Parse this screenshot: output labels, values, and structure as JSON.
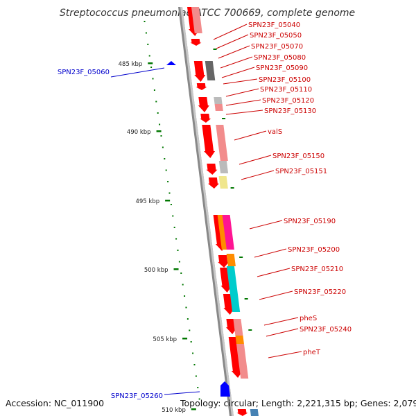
{
  "title": "Streptococcus pneumoniae ATCC 700669, complete genome",
  "footer": {
    "accession": "Accession: NC_011900",
    "topology": "Topology: circular; Length: 2,221,315 bp; Genes: 2,079"
  },
  "colors": {
    "forward_label": "#cc0000",
    "reverse_label": "#0000cc",
    "cds_forward": "#ff0000",
    "cds_reverse": "#0000ff",
    "backbone": "#999999",
    "tick": "#007700"
  },
  "kbp_ticks": [
    "485 kbp",
    "490 kbp",
    "495 kbp",
    "500 kbp",
    "505 kbp",
    "510 kbp"
  ],
  "forward_genes": [
    {
      "label": "SPN23F_05040"
    },
    {
      "label": "SPN23F_05050"
    },
    {
      "label": "SPN23F_05070"
    },
    {
      "label": "SPN23F_05080"
    },
    {
      "label": "SPN23F_05090"
    },
    {
      "label": "SPN23F_05100"
    },
    {
      "label": "SPN23F_05110"
    },
    {
      "label": "SPN23F_05120"
    },
    {
      "label": "SPN23F_05130"
    },
    {
      "label": "valS"
    },
    {
      "label": "SPN23F_05150"
    },
    {
      "label": "SPN23F_05151"
    },
    {
      "label": "SPN23F_05190"
    },
    {
      "label": "SPN23F_05200"
    },
    {
      "label": "SPN23F_05210"
    },
    {
      "label": "SPN23F_05220"
    },
    {
      "label": "pheS"
    },
    {
      "label": "SPN23F_05240"
    },
    {
      "label": "pheT"
    }
  ],
  "reverse_genes": [
    {
      "label": "SPN23F_05060"
    },
    {
      "label": "SPN23F_05260"
    }
  ],
  "annotation_colors": {
    "light_red": "#f28c8c",
    "gray": "#bbbbbb",
    "dark_gray": "#666666",
    "yellow": "#f0e68c",
    "orange": "#ff8c00",
    "magenta": "#ff1493",
    "cyan": "#00cccc",
    "steel": "#4682b4"
  }
}
